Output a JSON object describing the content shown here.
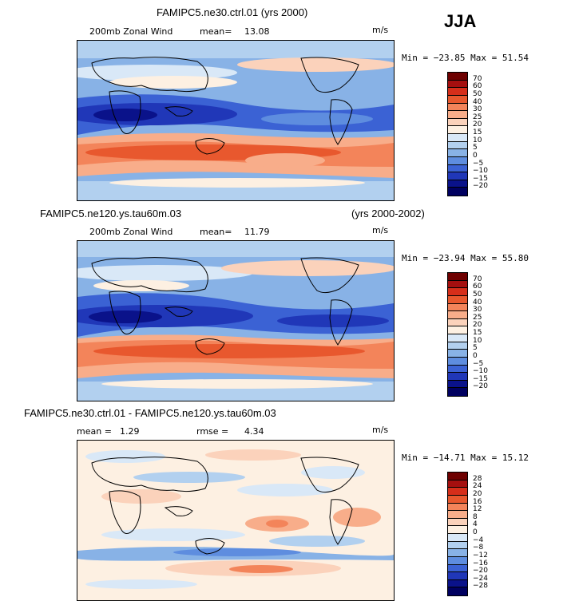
{
  "season": "JJA",
  "panels": [
    {
      "title": "FAMIPC5.ne30.ctrl.01 (yrs 2000)",
      "subtitle_left": "200mb Zonal Wind",
      "stat1_label": "mean=",
      "stat1_value": "13.08",
      "stat2_label": "",
      "stat2_value": "",
      "units": "m/s",
      "minmax": "Min = −23.85  Max =  51.54",
      "colorbar": [
        "70",
        "60",
        "50",
        "40",
        "30",
        "25",
        "20",
        "15",
        "10",
        "5",
        "0",
        "−5",
        "−10",
        "−15",
        "−20"
      ]
    },
    {
      "title_left": "FAMIPC5.ne120.ys.tau60m.03",
      "title_right": "(yrs 2000-2002)",
      "subtitle_left": "200mb Zonal Wind",
      "stat1_label": "mean=",
      "stat1_value": "11.79",
      "units": "m/s",
      "minmax": "Min = −23.94  Max =  55.80",
      "colorbar": [
        "70",
        "60",
        "50",
        "40",
        "30",
        "25",
        "20",
        "15",
        "10",
        "5",
        "0",
        "−5",
        "−10",
        "−15",
        "−20"
      ]
    },
    {
      "title": "FAMIPC5.ne30.ctrl.01 - FAMIPC5.ne120.ys.tau60m.03",
      "stat1_label": "mean =",
      "stat1_value": "1.29",
      "stat2_label": "rmse =",
      "stat2_value": "4.34",
      "units": "m/s",
      "minmax": "Min = −14.71  Max =  15.12",
      "colorbar": [
        "28",
        "24",
        "20",
        "16",
        "12",
        "8",
        "4",
        "0",
        "−4",
        "−8",
        "−12",
        "−16",
        "−20",
        "−24",
        "−28"
      ]
    }
  ],
  "palette": [
    "#6e0000",
    "#a50f0f",
    "#d62e1a",
    "#e8582e",
    "#f3845a",
    "#f8ad8a",
    "#fbd2bb",
    "#fdf0e2",
    "#d9e8f7",
    "#b2d0ef",
    "#88b2e6",
    "#5e8ddf",
    "#3b62d4",
    "#2037b8",
    "#0a128a",
    "#000060"
  ]
}
